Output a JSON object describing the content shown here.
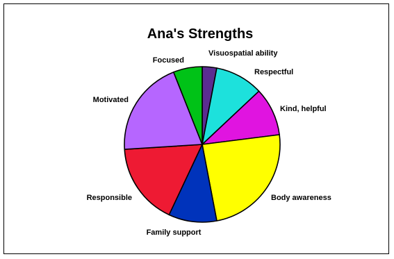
{
  "chart_data": {
    "type": "pie",
    "title": "Ana's Strengths",
    "slices": [
      {
        "label": "Visuospatial ability",
        "value": 3,
        "color": "#5b2d91"
      },
      {
        "label": "Respectful",
        "value": 10,
        "color": "#1de1dc"
      },
      {
        "label": "Kind, helpful",
        "value": 10,
        "color": "#e014e0"
      },
      {
        "label": "Body awareness",
        "value": 24,
        "color": "#ffff00"
      },
      {
        "label": "Family support",
        "value": 10,
        "color": "#0033bb"
      },
      {
        "label": "Responsible",
        "value": 17,
        "color": "#ee1a33"
      },
      {
        "label": "Motivated",
        "value": 20,
        "color": "#b666ff"
      },
      {
        "label": "Focused",
        "value": 6,
        "color": "#00c217"
      }
    ],
    "start_angle_deg": 0,
    "direction": "clockwise",
    "legend": "none (labels outside slices)"
  }
}
